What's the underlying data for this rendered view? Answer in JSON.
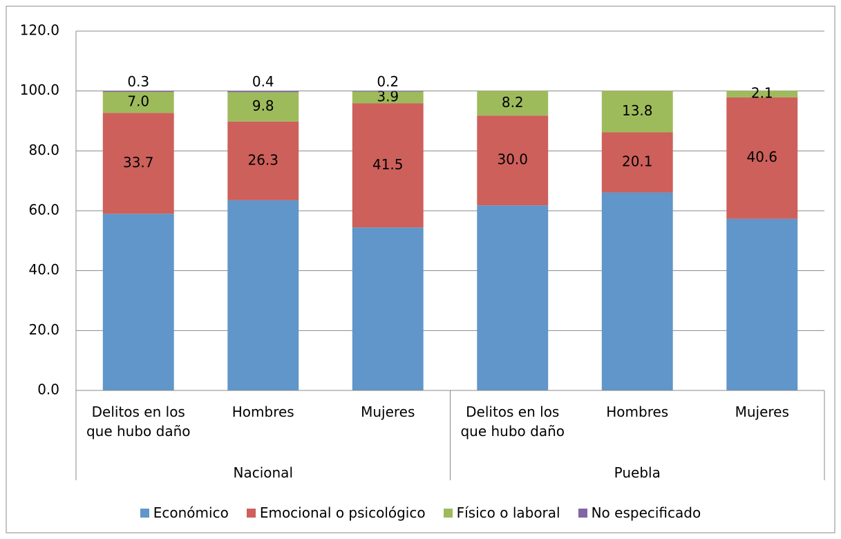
{
  "chart_data": {
    "type": "stacked_bar",
    "categories": [
      "Delitos en los que hubo daño",
      "Hombres",
      "Mujeres",
      "Delitos en los que hubo daño",
      "Hombres",
      "Mujeres"
    ],
    "groups": [
      {
        "label": "Nacional",
        "span": 3
      },
      {
        "label": "Puebla",
        "span": 3
      }
    ],
    "series": [
      {
        "name": "Económico",
        "color": "#6096c9",
        "values": [
          59.0,
          63.5,
          54.4,
          61.8,
          66.1,
          57.3
        ]
      },
      {
        "name": "Emocional o psicológico",
        "color": "#cd605b",
        "values": [
          33.7,
          26.3,
          41.5,
          30.0,
          20.1,
          40.6
        ],
        "value_labels": [
          "33.7",
          "26.3",
          "41.5",
          "30.0",
          "20.1",
          "40.6"
        ]
      },
      {
        "name": "Físico o laboral",
        "color": "#9ebb5c",
        "values": [
          7.0,
          9.8,
          3.9,
          8.2,
          13.8,
          2.1
        ],
        "value_labels": [
          "7.0",
          "9.8",
          "3.9",
          "8.2",
          "13.8",
          "2.1"
        ]
      },
      {
        "name": "No especificado",
        "color": "#8166a3",
        "values": [
          0.3,
          0.4,
          0.2,
          null,
          null,
          null
        ],
        "value_labels": [
          "0.3",
          "0.4",
          "0.2",
          null,
          null,
          null
        ]
      }
    ],
    "ylim": [
      0,
      120
    ],
    "yticks": [
      {
        "value": 0,
        "label": "0.0"
      },
      {
        "value": 20,
        "label": "20.0"
      },
      {
        "value": 40,
        "label": "40.0"
      },
      {
        "value": 60,
        "label": "60.0"
      },
      {
        "value": 80,
        "label": "80.0"
      },
      {
        "value": 100,
        "label": "100.0"
      },
      {
        "value": 120,
        "label": "120.0"
      }
    ],
    "grid": true
  }
}
